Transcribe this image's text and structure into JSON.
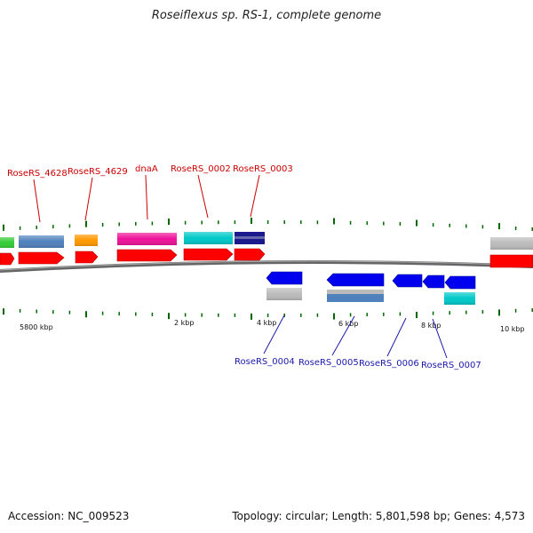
{
  "title": "Roseiflexus sp. RS-1, complete genome",
  "footer": {
    "accession": "Accession: NC_009523",
    "summary": "Topology: circular; Length: 5,801,598 bp; Genes: 4,573"
  },
  "colors": {
    "label_forward": "#cc0000",
    "label_reverse": "#1a1aaa",
    "cds_forward": "#ff0000",
    "cds_reverse": "#0000ee",
    "tick": "#006600",
    "backbone": "#777777"
  },
  "tick_labels": [
    {
      "text": "5800 kbp",
      "pos": 5800000
    },
    {
      "text": "2 kbp",
      "pos": 2000
    },
    {
      "text": "4 kbp",
      "pos": 4000
    },
    {
      "text": "6 kbp",
      "pos": 6000
    },
    {
      "text": "8 kbp",
      "pos": 8000
    },
    {
      "text": "10 kbp",
      "pos": 10000
    }
  ],
  "forward_genes": [
    {
      "label": "RoseRS_4628",
      "feature_color": "#4f81bd"
    },
    {
      "label": "RoseRS_4629",
      "feature_color": "#ff9900"
    },
    {
      "label": "dnaA",
      "feature_color": "#ee1199"
    },
    {
      "label": "RoseRS_0002",
      "feature_color": "#00c8c8"
    },
    {
      "label": "RoseRS_0003",
      "feature_color": "#1a1a8c"
    }
  ],
  "reverse_genes": [
    {
      "label": "RoseRS_0004",
      "feature_color": "#bbbbbb"
    },
    {
      "label": "RoseRS_0005",
      "feature_color": "#4f81bd"
    },
    {
      "label": "RoseRS_0006",
      "feature_color": ""
    },
    {
      "label": "RoseRS_0007",
      "feature_color": "#00c8c8"
    }
  ]
}
